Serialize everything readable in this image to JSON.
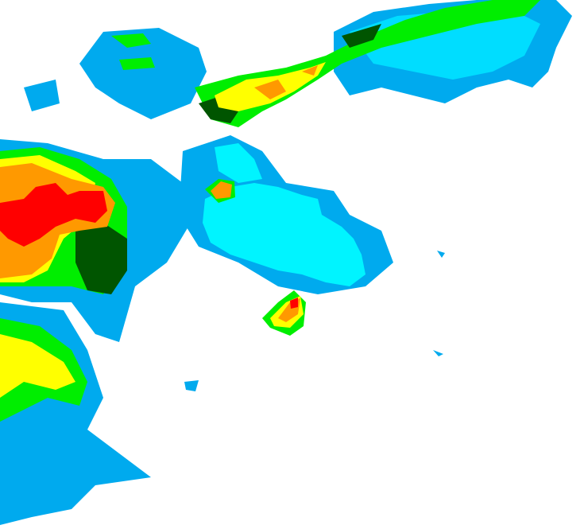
{
  "map": {
    "type": "precipitation-radar",
    "background": "#ffffff",
    "colors": {
      "light": "#00eeff",
      "light_moderate": "#00aaee",
      "moderate": "#00ff00",
      "moderate_heavy": "#006600",
      "heavy": "#ffff00",
      "very_heavy": "#ff9900",
      "intense": "#ff0000"
    }
  }
}
